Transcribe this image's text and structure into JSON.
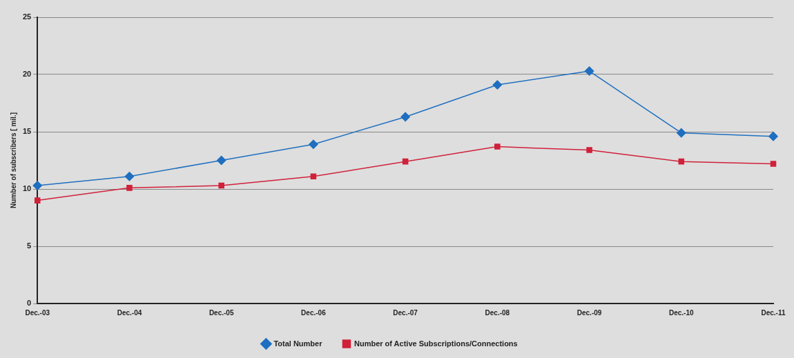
{
  "chart_data": {
    "type": "line",
    "ylabel": "Number of subscribers [ mil.]",
    "categories": [
      "Dec.-03",
      "Dec.-04",
      "Dec.-05",
      "Dec.-06",
      "Dec.-07",
      "Dec.-08",
      "Dec.-09",
      "Dec.-10",
      "Dec.-11"
    ],
    "series": [
      {
        "name": "Total Number",
        "color": "#1f6fc0",
        "marker": "diamond",
        "values": [
          10.3,
          11.1,
          12.5,
          13.9,
          16.3,
          19.1,
          20.3,
          14.9,
          14.6
        ]
      },
      {
        "name": "Number of Active Subscriptions/Connections",
        "color": "#d0203a",
        "marker": "square",
        "values": [
          9.0,
          10.1,
          10.3,
          11.1,
          12.4,
          13.7,
          13.4,
          12.4,
          12.2
        ]
      }
    ],
    "ylim": [
      0,
      25
    ],
    "yticks": [
      0,
      5,
      10,
      15,
      20,
      25
    ],
    "grid": "y",
    "legend": "bottom",
    "line_style": "solid"
  }
}
